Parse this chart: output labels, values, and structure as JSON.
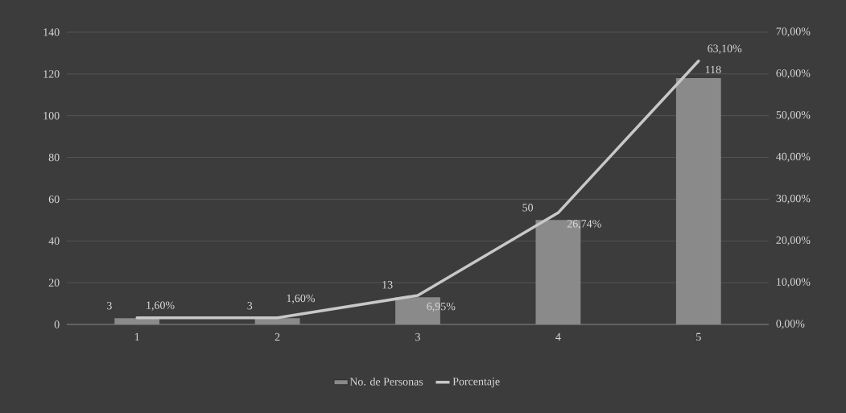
{
  "chart_data": {
    "type": "bar",
    "categories": [
      "1",
      "2",
      "3",
      "4",
      "5"
    ],
    "series": [
      {
        "name": "No. de Personas",
        "color": "#8a8a8a",
        "values": [
          3,
          3,
          13,
          50,
          118
        ],
        "value_labels": [
          "3",
          "3",
          "13",
          "50",
          "118"
        ]
      },
      {
        "name": "Porcentaje",
        "type": "line",
        "axis": "y2",
        "color": "#c8c8c8",
        "values": [
          1.6,
          1.6,
          6.95,
          26.74,
          63.1
        ],
        "value_labels": [
          "1,60%",
          "1,60%",
          "6,95%",
          "26,74%",
          "63,10%"
        ]
      }
    ],
    "ylim": [
      0,
      140
    ],
    "yticks": [
      0,
      20,
      40,
      60,
      80,
      100,
      120,
      140
    ],
    "y2lim": [
      0,
      70
    ],
    "y2ticks": [
      {
        "value": 0,
        "label": "0,00%"
      },
      {
        "value": 10,
        "label": "10,00%"
      },
      {
        "value": 20,
        "label": "20,00%"
      },
      {
        "value": 30,
        "label": "30,00%"
      },
      {
        "value": 40,
        "label": "40,00%"
      },
      {
        "value": 50,
        "label": "50,00%"
      },
      {
        "value": 60,
        "label": "60,00%"
      },
      {
        "value": 70,
        "label": "70,00%"
      }
    ],
    "grid": "y",
    "legend": "bottom"
  }
}
